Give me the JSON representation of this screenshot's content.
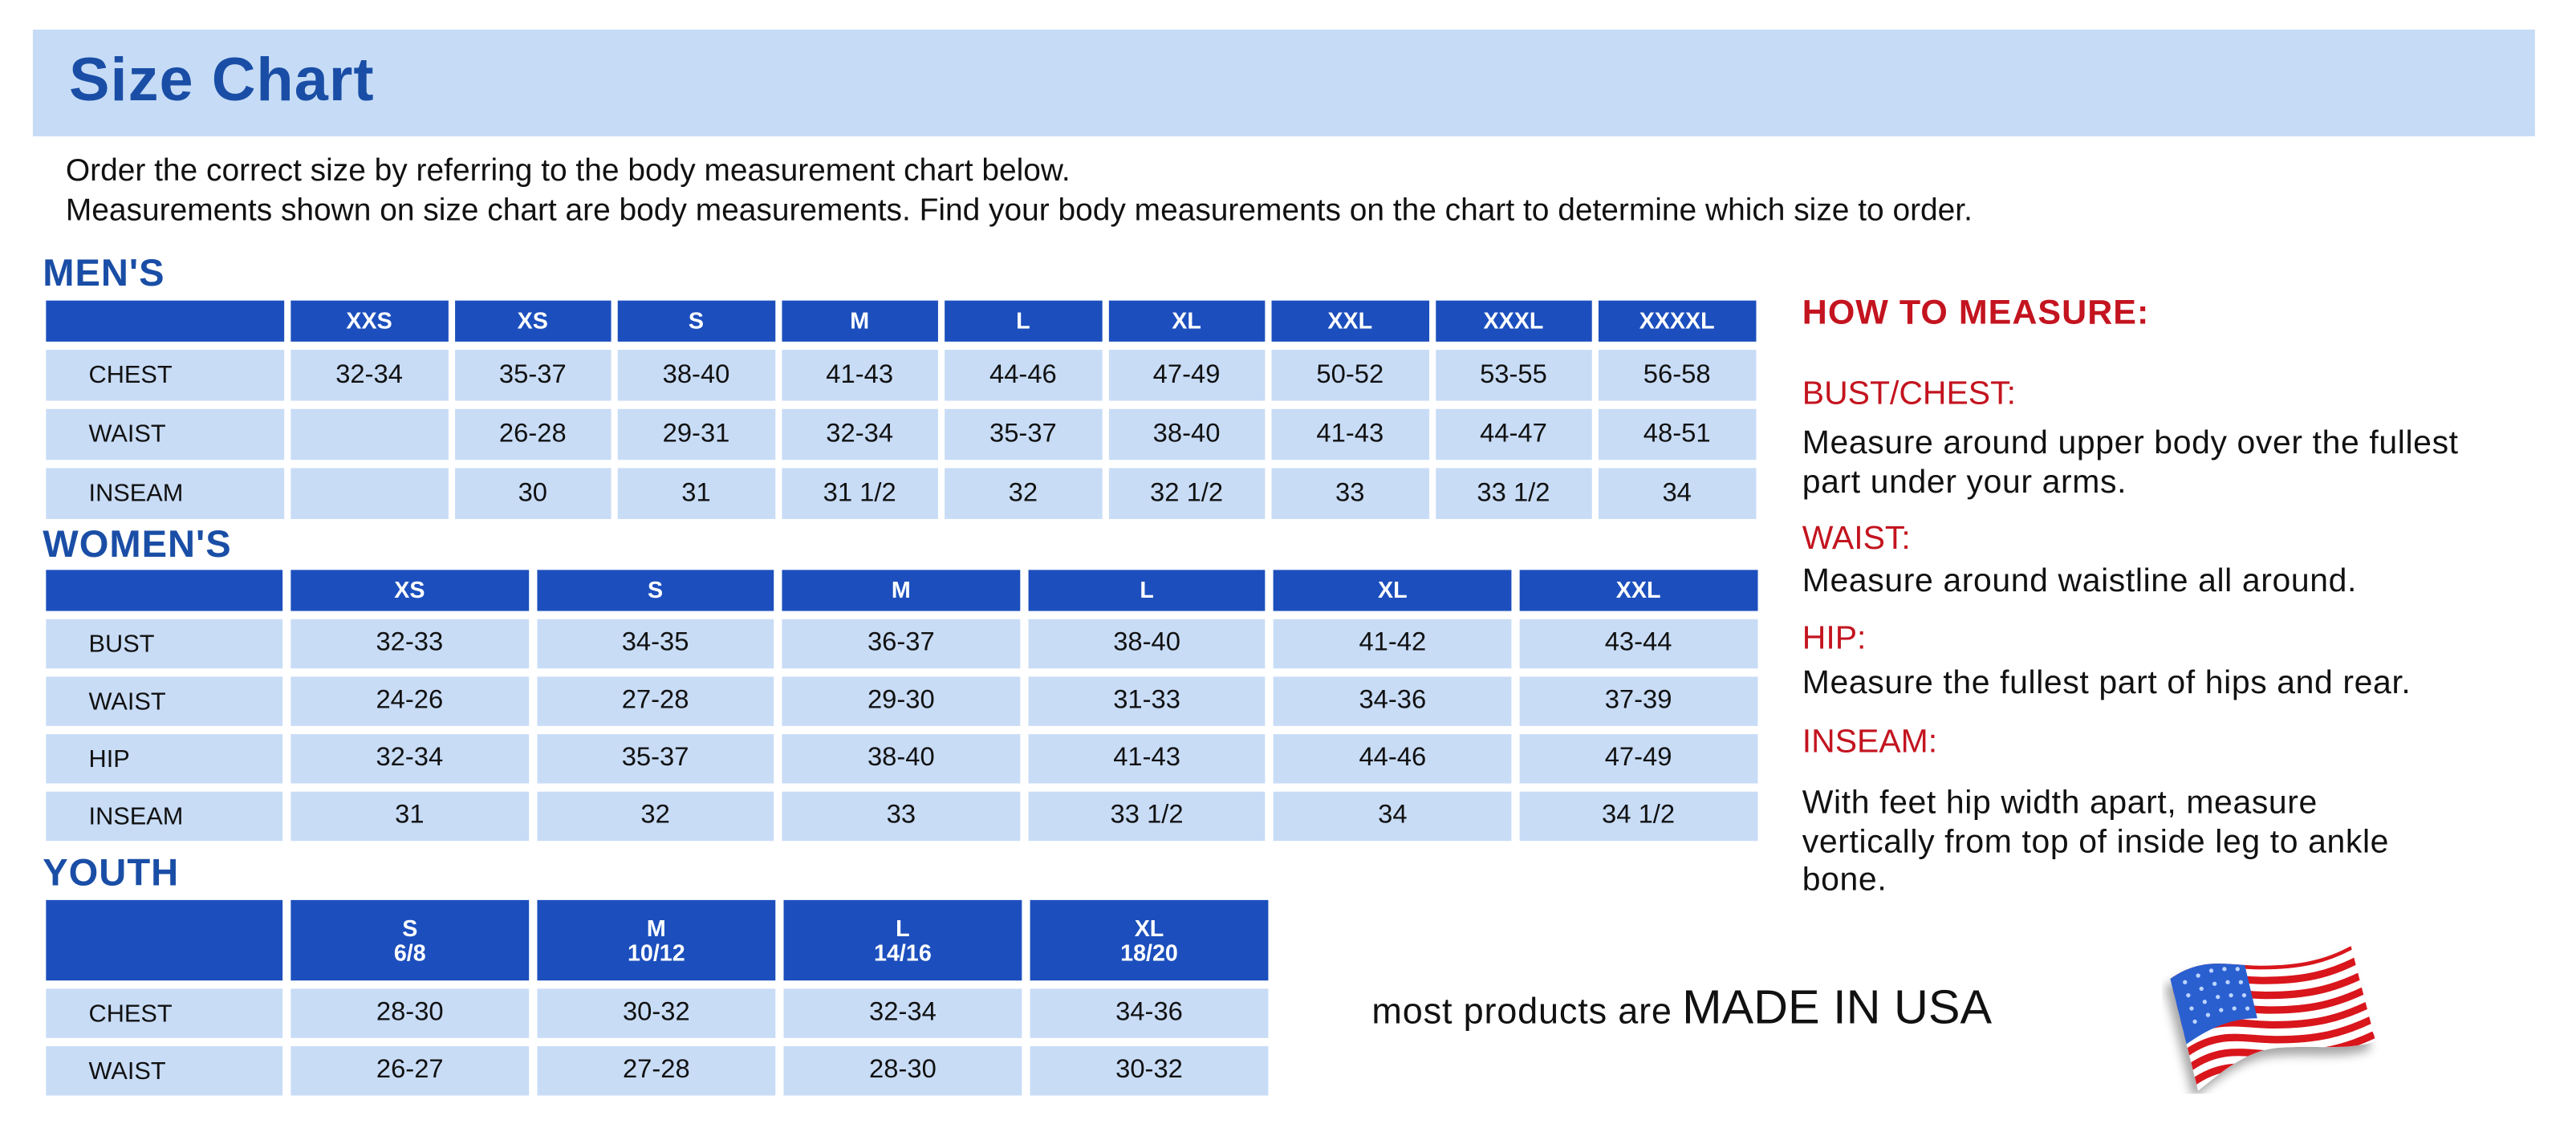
{
  "title": "Size Chart",
  "intro": [
    "Order the correct size by referring to the body measurement chart below.",
    "Measurements shown on size chart are body measurements.  Find your body measurements on the chart to determine which size to order."
  ],
  "colors": {
    "header_blue": "#1c4fbd",
    "cell_blue": "#c8dcf6",
    "title_blue": "#1a4ea6",
    "accent_red": "#c3141f"
  },
  "mens": {
    "label": "MEN'S",
    "sizes": [
      "XXS",
      "XS",
      "S",
      "M",
      "L",
      "XL",
      "XXL",
      "XXXL",
      "XXXXL"
    ],
    "rows": [
      {
        "name": "CHEST",
        "values": [
          "32-34",
          "35-37",
          "38-40",
          "41-43",
          "44-46",
          "47-49",
          "50-52",
          "53-55",
          "56-58"
        ]
      },
      {
        "name": "WAIST",
        "values": [
          "",
          "26-28",
          "29-31",
          "32-34",
          "35-37",
          "38-40",
          "41-43",
          "44-47",
          "48-51"
        ]
      },
      {
        "name": "INSEAM",
        "values": [
          "",
          "30",
          "31",
          "31 1/2",
          "32",
          "32 1/2",
          "33",
          "33 1/2",
          "34"
        ]
      }
    ]
  },
  "womens": {
    "label": "WOMEN'S",
    "sizes": [
      "XS",
      "S",
      "M",
      "L",
      "XL",
      "XXL"
    ],
    "rows": [
      {
        "name": "BUST",
        "values": [
          "32-33",
          "34-35",
          "36-37",
          "38-40",
          "41-42",
          "43-44"
        ]
      },
      {
        "name": "WAIST",
        "values": [
          "24-26",
          "27-28",
          "29-30",
          "31-33",
          "34-36",
          "37-39"
        ]
      },
      {
        "name": "HIP",
        "values": [
          "32-34",
          "35-37",
          "38-40",
          "41-43",
          "44-46",
          "47-49"
        ]
      },
      {
        "name": "INSEAM",
        "values": [
          "31",
          "32",
          "33",
          "33 1/2",
          "34",
          "34 1/2"
        ]
      }
    ]
  },
  "youth": {
    "label": "YOUTH",
    "sizes": [
      "S\n6/8",
      "M\n10/12",
      "L\n14/16",
      "XL\n18/20"
    ],
    "rows": [
      {
        "name": "CHEST",
        "values": [
          "28-30",
          "30-32",
          "32-34",
          "34-36"
        ]
      },
      {
        "name": "WAIST",
        "values": [
          "26-27",
          "27-28",
          "28-30",
          "30-32"
        ]
      }
    ]
  },
  "how_to_measure": {
    "heading": "HOW TO MEASURE:",
    "items": [
      {
        "label": "BUST/CHEST:",
        "text": "Measure around upper body over the fullest part under your arms."
      },
      {
        "label": "WAIST:",
        "text": "Measure around waistline all around."
      },
      {
        "label": "HIP:",
        "text": "Measure the fullest part of hips and rear."
      },
      {
        "label": "INSEAM:",
        "text": "With feet hip width apart, measure vertically from top of inside leg to ankle bone."
      }
    ]
  },
  "footer": {
    "prefix": "most products are",
    "emphasis": "MADE IN USA",
    "flag_icon": "us-flag-icon"
  }
}
